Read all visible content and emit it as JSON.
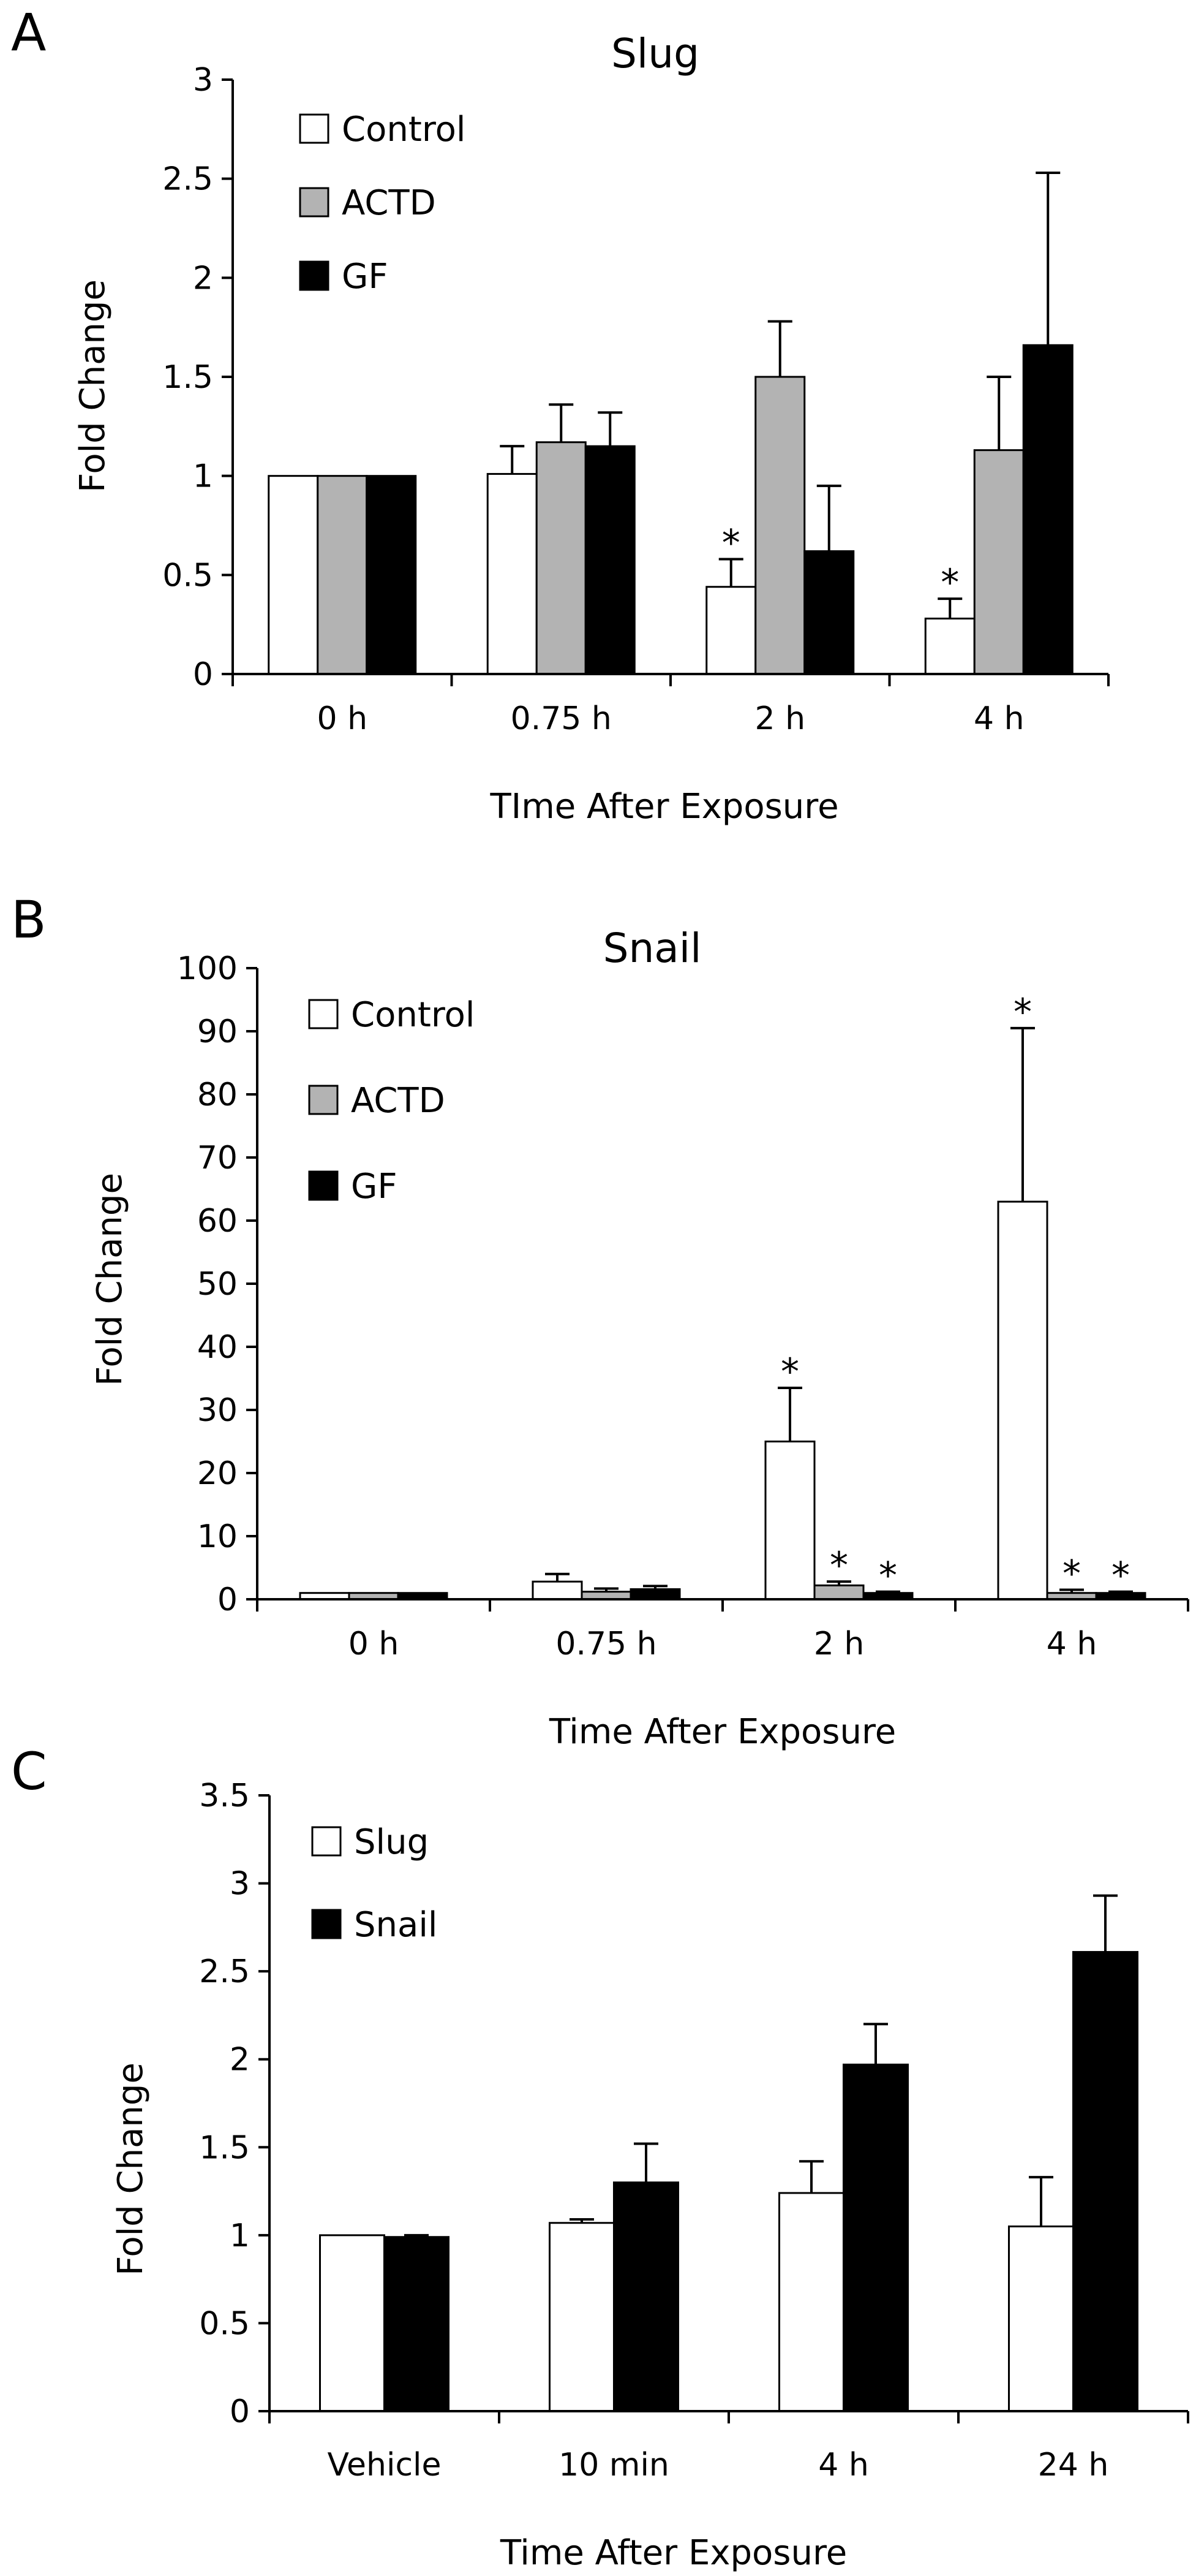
{
  "figure": {
    "panels": [
      "A",
      "B",
      "C"
    ]
  },
  "colors": {
    "axis": "#000000",
    "control": "#ffffff",
    "actd": "#b3b3b3",
    "gf": "#000000",
    "outline": "#000000"
  },
  "chart_data": [
    {
      "panel": "A",
      "type": "bar",
      "title": "Slug",
      "xlabel": "TIme After Exposure",
      "ylabel": "Fold Change",
      "ylim": [
        0,
        3
      ],
      "yticks": [
        "0",
        "0.5",
        "1",
        "1.5",
        "2",
        "2.5",
        "3"
      ],
      "categories": [
        "0 h",
        "0.75 h",
        "2 h",
        "4 h"
      ],
      "legend_position": "top-left",
      "series": [
        {
          "name": "Control",
          "color": "#ffffff",
          "values": [
            1.0,
            1.01,
            0.44,
            0.28
          ],
          "errors": [
            0.0,
            0.14,
            0.14,
            0.1
          ]
        },
        {
          "name": "ACTD",
          "color": "#b3b3b3",
          "values": [
            1.0,
            1.17,
            1.5,
            1.13
          ],
          "errors": [
            0.0,
            0.19,
            0.28,
            0.37
          ]
        },
        {
          "name": "GF",
          "color": "#000000",
          "values": [
            1.0,
            1.15,
            0.62,
            1.66
          ],
          "errors": [
            0.0,
            0.17,
            0.33,
            0.87
          ]
        }
      ],
      "annotations": [
        {
          "category": 2,
          "series": 0,
          "text": "*"
        },
        {
          "category": 3,
          "series": 0,
          "text": "*"
        }
      ]
    },
    {
      "panel": "B",
      "type": "bar",
      "title": "Snail",
      "xlabel": "Time After Exposure",
      "ylabel": "Fold Change",
      "ylim": [
        0,
        100
      ],
      "yticks": [
        "0",
        "10",
        "20",
        "30",
        "40",
        "50",
        "60",
        "70",
        "80",
        "90",
        "100"
      ],
      "categories": [
        "0 h",
        "0.75 h",
        "2 h",
        "4 h"
      ],
      "legend_position": "top-left",
      "series": [
        {
          "name": "Control",
          "color": "#ffffff",
          "values": [
            1.0,
            2.8,
            25.0,
            63.0
          ],
          "errors": [
            0.0,
            1.2,
            8.5,
            27.5
          ]
        },
        {
          "name": "ACTD",
          "color": "#b3b3b3",
          "values": [
            1.0,
            1.2,
            2.2,
            1.0
          ],
          "errors": [
            0.0,
            0.5,
            0.6,
            0.5
          ]
        },
        {
          "name": "GF",
          "color": "#000000",
          "values": [
            1.0,
            1.6,
            1.0,
            1.0
          ],
          "errors": [
            0.0,
            0.5,
            0.2,
            0.2
          ]
        }
      ],
      "annotations": [
        {
          "category": 2,
          "series": 0,
          "text": "*"
        },
        {
          "category": 3,
          "series": 0,
          "text": "*"
        },
        {
          "category": 2,
          "series": 1,
          "text": "*"
        },
        {
          "category": 2,
          "series": 2,
          "text": "*"
        },
        {
          "category": 3,
          "series": 1,
          "text": "*"
        },
        {
          "category": 3,
          "series": 2,
          "text": "*"
        }
      ]
    },
    {
      "panel": "C",
      "type": "bar",
      "title": "",
      "xlabel": "Time After Exposure",
      "ylabel": "Fold Change",
      "ylim": [
        0,
        3.5
      ],
      "yticks": [
        "0",
        "0.5",
        "1",
        "1.5",
        "2",
        "2.5",
        "3",
        "3.5"
      ],
      "categories": [
        "Vehicle",
        "10 min",
        "4 h",
        "24 h"
      ],
      "legend_position": "top-left",
      "series": [
        {
          "name": "Slug",
          "color": "#ffffff",
          "values": [
            1.0,
            1.07,
            1.24,
            1.05
          ],
          "errors": [
            0.0,
            0.02,
            0.18,
            0.28
          ]
        },
        {
          "name": "Snail",
          "color": "#000000",
          "values": [
            0.99,
            1.3,
            1.97,
            2.61
          ],
          "errors": [
            0.01,
            0.22,
            0.23,
            0.32
          ]
        }
      ],
      "annotations": []
    }
  ]
}
